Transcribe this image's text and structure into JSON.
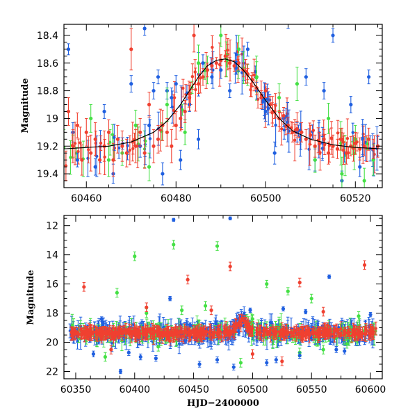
{
  "chart_data": [
    {
      "type": "scatter",
      "title": "",
      "xlabel": "",
      "ylabel": "Magnitude",
      "xlim": [
        60455,
        60526
      ],
      "ylim": [
        19.5,
        18.32
      ],
      "y_inverted": true,
      "x_ticks": [
        60460,
        60480,
        60500,
        60520
      ],
      "y_ticks": [
        18.4,
        18.6,
        18.8,
        19,
        19.2,
        19.4
      ],
      "y_tick_labels": [
        "18.4",
        "18.6",
        "18.8",
        "19",
        "19.2",
        "19.4"
      ],
      "grid": false,
      "legend": "none",
      "colors": {
        "blue": "#1f5fe0",
        "green": "#44e044",
        "red": "#f04030",
        "model": "#000000"
      },
      "model_curve": {
        "baseline": 19.22,
        "peak_time": 60491,
        "peak_mag": 18.57,
        "x": [
          60455,
          60465,
          60470,
          60475,
          60478,
          60481,
          60483,
          60485,
          60487,
          60489,
          60491,
          60493,
          60495,
          60497,
          60500,
          60503,
          60506,
          60510,
          60515,
          60520,
          60526
        ],
        "y": [
          19.22,
          19.2,
          19.17,
          19.1,
          19.02,
          18.9,
          18.8,
          18.7,
          18.62,
          18.58,
          18.57,
          18.59,
          18.65,
          18.73,
          18.87,
          19.0,
          19.09,
          19.15,
          19.19,
          19.21,
          19.22
        ]
      },
      "series": [
        {
          "color": "blue",
          "x": [
            60456,
            60457,
            60458,
            60462,
            60464,
            60466,
            60470,
            60472,
            60473,
            60474,
            60475,
            60476,
            60477,
            60478,
            60479,
            60480,
            60481,
            60482,
            60483,
            60485,
            60486,
            60488,
            60490,
            60492,
            60494,
            60496,
            60498,
            60500,
            60502,
            60504,
            60505,
            60507,
            60509,
            60511,
            60513,
            60515,
            60517,
            60519,
            60521,
            60523,
            60525
          ],
          "y": [
            18.5,
            19.1,
            19.3,
            19.35,
            18.95,
            19.4,
            18.75,
            19.2,
            18.35,
            19.05,
            18.8,
            18.7,
            19.4,
            18.8,
            18.85,
            18.75,
            19.3,
            18.95,
            18.9,
            19.15,
            18.6,
            18.7,
            18.65,
            18.8,
            18.6,
            18.5,
            18.8,
            18.95,
            19.25,
            19.0,
            18.3,
            19.1,
            18.7,
            19.3,
            18.8,
            18.4,
            19.45,
            18.9,
            19.35,
            18.7,
            19.2
          ],
          "err": [
            0.04,
            0.07,
            0.05,
            0.06,
            0.05,
            0.07,
            0.06,
            0.08,
            0.05,
            0.07,
            0.06,
            0.05,
            0.08,
            0.06,
            0.07,
            0.06,
            0.07,
            0.06,
            0.05,
            0.07,
            0.06,
            0.05,
            0.06,
            0.05,
            0.06,
            0.05,
            0.06,
            0.07,
            0.08,
            0.06,
            0.05,
            0.07,
            0.06,
            0.08,
            0.06,
            0.05,
            0.07,
            0.06,
            0.07,
            0.05,
            0.07
          ]
        },
        {
          "color": "green",
          "x": [
            60457,
            60461,
            60465,
            60468,
            60471,
            60474,
            60478,
            60482,
            60485,
            60487,
            60490,
            60494,
            60498,
            60503,
            60507,
            60511,
            60514,
            60517,
            60520,
            60522,
            60524
          ],
          "y": [
            19.2,
            19.0,
            19.3,
            19.25,
            19.05,
            19.35,
            18.9,
            19.1,
            18.6,
            18.65,
            18.4,
            18.5,
            18.7,
            18.85,
            18.75,
            19.3,
            19.0,
            19.4,
            19.15,
            19.45,
            19.3
          ],
          "err": [
            0.08,
            0.1,
            0.12,
            0.09,
            0.11,
            0.1,
            0.12,
            0.09,
            0.13,
            0.1,
            0.08,
            0.1,
            0.11,
            0.1,
            0.12,
            0.09,
            0.11,
            0.12,
            0.1,
            0.09,
            0.11
          ]
        },
        {
          "color": "red",
          "x": [
            60456,
            60457,
            60458,
            60459,
            60460,
            60461,
            60462,
            60463,
            60464,
            60465,
            60466,
            60467,
            60468,
            60469,
            60470,
            60471,
            60472,
            60473,
            60474,
            60475,
            60476,
            60477,
            60478,
            60479,
            60480,
            60481,
            60482,
            60483,
            60484,
            60485,
            60486,
            60487,
            60488,
            60489,
            60490,
            60491,
            60492,
            60493,
            60494,
            60495,
            60496,
            60497,
            60498,
            60499,
            60500,
            60501,
            60502,
            60503,
            60504,
            60505,
            60506,
            60507,
            60508,
            60509,
            60510,
            60511,
            60512,
            60513,
            60514,
            60515,
            60516,
            60517,
            60518,
            60519,
            60520,
            60521,
            60522,
            60523,
            60524,
            60525
          ],
          "y": [
            18.95,
            19.2,
            19.05,
            19.3,
            19.1,
            19.25,
            19.15,
            19.3,
            19.2,
            19.1,
            19.3,
            19.15,
            19.2,
            19.25,
            18.5,
            19.2,
            19.1,
            19.25,
            18.9,
            19.2,
            19.15,
            19.05,
            19.1,
            19.2,
            19.05,
            19.0,
            18.95,
            18.85,
            18.4,
            18.75,
            18.7,
            18.65,
            18.62,
            18.6,
            18.58,
            18.55,
            18.6,
            18.62,
            18.6,
            18.65,
            18.68,
            18.72,
            18.78,
            18.85,
            18.8,
            18.9,
            18.95,
            19.0,
            18.98,
            19.05,
            19.1,
            19.08,
            19.1,
            19.15,
            19.12,
            19.2,
            19.18,
            19.15,
            19.25,
            19.2,
            19.22,
            19.15,
            19.25,
            19.2,
            19.18,
            19.22,
            19.2,
            19.15,
            19.22,
            19.2
          ],
          "err": [
            0.1,
            0.12,
            0.09,
            0.11,
            0.1,
            0.13,
            0.12,
            0.1,
            0.11,
            0.09,
            0.12,
            0.1,
            0.11,
            0.1,
            0.15,
            0.12,
            0.1,
            0.11,
            0.09,
            0.12,
            0.1,
            0.11,
            0.1,
            0.12,
            0.1,
            0.09,
            0.08,
            0.09,
            0.12,
            0.07,
            0.06,
            0.05,
            0.05,
            0.04,
            0.04,
            0.04,
            0.04,
            0.04,
            0.05,
            0.05,
            0.04,
            0.05,
            0.05,
            0.05,
            0.05,
            0.06,
            0.05,
            0.06,
            0.06,
            0.06,
            0.07,
            0.06,
            0.07,
            0.07,
            0.07,
            0.08,
            0.08,
            0.07,
            0.08,
            0.08,
            0.07,
            0.08,
            0.08,
            0.07,
            0.08,
            0.08,
            0.07,
            0.08,
            0.07,
            0.08
          ]
        }
      ]
    },
    {
      "type": "scatter",
      "title": "",
      "xlabel": "HJD−2400000",
      "ylabel": "Magnitude",
      "xlim": [
        60340,
        60610
      ],
      "ylim": [
        22.5,
        11.3
      ],
      "y_inverted": true,
      "x_ticks": [
        60350,
        60400,
        60450,
        60500,
        60550,
        60600
      ],
      "y_ticks": [
        12,
        14,
        16,
        18,
        20,
        22
      ],
      "grid": false,
      "legend": "none",
      "colors": {
        "blue": "#1f5fe0",
        "green": "#44e044",
        "red": "#f04030"
      },
      "baseline_band": {
        "x_range": [
          60345,
          60605
        ],
        "center_mag": 19.35,
        "color_order": [
          "blue",
          "green",
          "red"
        ]
      },
      "event_bump": {
        "time": 60491,
        "peak_mag": 18.6
      },
      "outliers": {
        "blue": {
          "x": [
            60388,
            60433,
            60481,
            60526,
            60565,
            60365,
            60405,
            60430,
            60447,
            60470,
            60498,
            60512,
            60540,
            60578,
            60600,
            60372,
            60395,
            60418,
            60455,
            60484,
            60520,
            60545,
            60571
          ],
          "y": [
            22.0,
            11.6,
            11.5,
            17.7,
            15.5,
            20.8,
            21.0,
            17.0,
            18.8,
            21.2,
            17.8,
            21.4,
            20.9,
            20.6,
            18.1,
            18.4,
            20.7,
            21.1,
            21.5,
            21.7,
            21.2,
            17.9,
            20.5
          ],
          "err": [
            0.15,
            0.1,
            0.1,
            0.15,
            0.12,
            0.2,
            0.2,
            0.15,
            0.15,
            0.2,
            0.15,
            0.2,
            0.2,
            0.2,
            0.15,
            0.15,
            0.2,
            0.2,
            0.2,
            0.2,
            0.2,
            0.15,
            0.2
          ]
        },
        "green": {
          "x": [
            60400,
            60433,
            60470,
            60512,
            60530,
            60550,
            60590,
            60385,
            60410,
            60440,
            60460,
            60500,
            60560,
            60375,
            60420,
            60490,
            60540,
            60580
          ],
          "y": [
            14.1,
            13.3,
            13.4,
            16.0,
            16.5,
            17.0,
            18.2,
            16.6,
            18.0,
            17.8,
            17.5,
            18.4,
            20.5,
            21.0,
            20.3,
            21.4,
            20.7,
            20.1
          ],
          "err": [
            0.3,
            0.3,
            0.3,
            0.25,
            0.25,
            0.3,
            0.3,
            0.3,
            0.3,
            0.3,
            0.3,
            0.3,
            0.3,
            0.3,
            0.3,
            0.3,
            0.3,
            0.3
          ],
          "sizes": "small"
        },
        "red": {
          "x": [
            60357,
            60445,
            60481,
            60540,
            60595,
            60525,
            60410,
            60465,
            60500,
            60560,
            60380,
            60430
          ],
          "y": [
            16.2,
            15.7,
            14.8,
            15.9,
            14.7,
            21.3,
            17.6,
            17.8,
            20.8,
            17.9,
            20.5,
            19.9
          ],
          "err": [
            0.3,
            0.3,
            0.3,
            0.3,
            0.3,
            0.3,
            0.3,
            0.3,
            0.3,
            0.3,
            0.3,
            0.3
          ]
        }
      }
    }
  ]
}
